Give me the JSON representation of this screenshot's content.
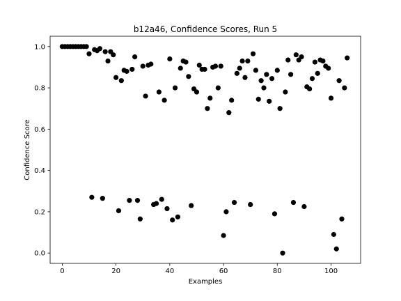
{
  "chart_data": {
    "type": "scatter",
    "title": "b12a46, Confidence Scores, Run 5",
    "xlabel": "Examples",
    "ylabel": "Confidence Score",
    "xlim": [
      -4.5,
      111
    ],
    "ylim": [
      -0.05,
      1.05
    ],
    "xticks": [
      0,
      20,
      40,
      60,
      80,
      100
    ],
    "yticks": [
      0.0,
      0.2,
      0.4,
      0.6,
      0.8,
      1.0
    ],
    "xtick_labels": [
      "0",
      "20",
      "40",
      "60",
      "80",
      "100"
    ],
    "ytick_labels": [
      "0.0",
      "0.2",
      "0.4",
      "0.6",
      "0.8",
      "1.0"
    ],
    "grid": false,
    "marker_color": "#000000",
    "points": [
      [
        0,
        1.0
      ],
      [
        1,
        1.0
      ],
      [
        2,
        1.0
      ],
      [
        3,
        1.0
      ],
      [
        4,
        1.0
      ],
      [
        5,
        1.0
      ],
      [
        6,
        1.0
      ],
      [
        7,
        1.0
      ],
      [
        8,
        1.0
      ],
      [
        9,
        1.0
      ],
      [
        10,
        0.965
      ],
      [
        11,
        0.27
      ],
      [
        12,
        0.985
      ],
      [
        13,
        0.98
      ],
      [
        14,
        0.99
      ],
      [
        15,
        0.265
      ],
      [
        16,
        0.975
      ],
      [
        17,
        0.93
      ],
      [
        18,
        0.975
      ],
      [
        19,
        0.96
      ],
      [
        20,
        0.85
      ],
      [
        21,
        0.205
      ],
      [
        22,
        0.835
      ],
      [
        23,
        0.885
      ],
      [
        24,
        0.88
      ],
      [
        25,
        0.255
      ],
      [
        26,
        0.89
      ],
      [
        27,
        0.95
      ],
      [
        28,
        0.255
      ],
      [
        29,
        0.165
      ],
      [
        30,
        0.905
      ],
      [
        31,
        0.76
      ],
      [
        32,
        0.91
      ],
      [
        33,
        0.915
      ],
      [
        34,
        0.235
      ],
      [
        35,
        0.24
      ],
      [
        36,
        0.78
      ],
      [
        37,
        0.26
      ],
      [
        38,
        0.74
      ],
      [
        39,
        0.215
      ],
      [
        40,
        0.94
      ],
      [
        41,
        0.16
      ],
      [
        42,
        0.8
      ],
      [
        43,
        0.175
      ],
      [
        44,
        0.895
      ],
      [
        45,
        0.93
      ],
      [
        46,
        0.925
      ],
      [
        47,
        0.855
      ],
      [
        48,
        0.23
      ],
      [
        49,
        0.795
      ],
      [
        50,
        0.78
      ],
      [
        51,
        0.91
      ],
      [
        52,
        0.89
      ],
      [
        53,
        0.89
      ],
      [
        54,
        0.7
      ],
      [
        55,
        0.75
      ],
      [
        56,
        0.9
      ],
      [
        57,
        0.905
      ],
      [
        58,
        0.8
      ],
      [
        59,
        0.905
      ],
      [
        60,
        0.085
      ],
      [
        61,
        0.2
      ],
      [
        62,
        0.68
      ],
      [
        63,
        0.74
      ],
      [
        64,
        0.245
      ],
      [
        65,
        0.87
      ],
      [
        66,
        0.895
      ],
      [
        67,
        0.93
      ],
      [
        68,
        0.85
      ],
      [
        69,
        0.93
      ],
      [
        70,
        0.235
      ],
      [
        71,
        0.965
      ],
      [
        72,
        0.885
      ],
      [
        73,
        0.745
      ],
      [
        74,
        0.835
      ],
      [
        75,
        0.8
      ],
      [
        76,
        0.865
      ],
      [
        77,
        0.735
      ],
      [
        78,
        0.845
      ],
      [
        79,
        0.19
      ],
      [
        80,
        0.885
      ],
      [
        81,
        0.7
      ],
      [
        82,
        0.0
      ],
      [
        83,
        0.78
      ],
      [
        84,
        0.935
      ],
      [
        85,
        0.865
      ],
      [
        86,
        0.245
      ],
      [
        87,
        0.96
      ],
      [
        88,
        0.935
      ],
      [
        89,
        0.95
      ],
      [
        90,
        0.225
      ],
      [
        91,
        0.805
      ],
      [
        92,
        0.795
      ],
      [
        93,
        0.845
      ],
      [
        94,
        0.925
      ],
      [
        95,
        0.87
      ],
      [
        96,
        0.935
      ],
      [
        97,
        0.93
      ],
      [
        98,
        0.905
      ],
      [
        99,
        0.895
      ],
      [
        100,
        0.75
      ],
      [
        101,
        0.09
      ],
      [
        102,
        0.02
      ],
      [
        103,
        0.835
      ],
      [
        104,
        0.165
      ],
      [
        105,
        0.8
      ],
      [
        106,
        0.945
      ]
    ]
  }
}
